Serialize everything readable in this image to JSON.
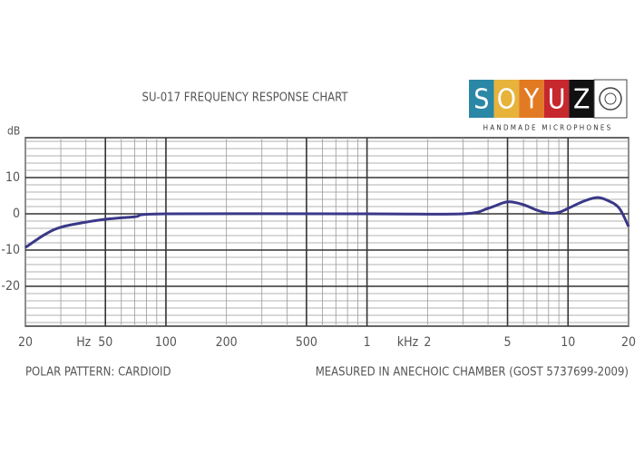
{
  "chart_data": {
    "type": "line",
    "title": "SU-017 FREQUENCY RESPONSE CHART",
    "ylabel": "dB",
    "x_scale": "log",
    "xlim": [
      20,
      20000
    ],
    "ylim": [
      -31,
      21
    ],
    "xticks": [
      20,
      50,
      100,
      200,
      500,
      {
        "value": 1000,
        "label": "1"
      },
      {
        "value": 2000,
        "label": "2"
      },
      {
        "value": 5000,
        "label": "5"
      },
      {
        "value": 10000,
        "label": "10"
      },
      {
        "value": 20000,
        "label": "20"
      }
    ],
    "yticks": [
      -20,
      -10,
      0,
      10
    ],
    "x_grid": [
      20,
      30,
      40,
      50,
      60,
      70,
      80,
      90,
      100,
      200,
      300,
      400,
      500,
      600,
      700,
      800,
      900,
      1000,
      2000,
      3000,
      4000,
      5000,
      6000,
      7000,
      8000,
      9000,
      10000,
      20000
    ],
    "x_major_grid": [
      50,
      100,
      500,
      1000,
      5000,
      10000
    ],
    "y_grid": [
      -30,
      -28,
      -26,
      -24,
      -22,
      -20,
      -18,
      -16,
      -14,
      -12,
      -10,
      -8,
      -6,
      -4,
      -2,
      0,
      2,
      4,
      6,
      8,
      10,
      12,
      14,
      16,
      18,
      20
    ],
    "grid": true,
    "x_unit_labels": [
      {
        "text": "Hz",
        "at": 33
      },
      {
        "text": "kHz",
        "at": 1300
      }
    ],
    "series": [
      {
        "color": "#3a3888",
        "x": [
          20,
          25,
          30,
          40,
          50,
          70,
          100,
          1000,
          3000,
          4000,
          5000,
          6000,
          7000,
          8000,
          9000,
          10000,
          12000,
          14000,
          16000,
          18000,
          20000
        ],
        "values": [
          -9.3,
          -5.7,
          -3.7,
          -2.3,
          -1.5,
          -0.8,
          0,
          0,
          0,
          1.5,
          3.3,
          2.5,
          1,
          0.2,
          0.4,
          1.5,
          3.5,
          4.5,
          3.5,
          1.5,
          -3.5
        ]
      }
    ],
    "footer_left": "POLAR PATTERN: CARDIOID",
    "footer_right": "MEASURED IN ANECHOIC CHAMBER (GOST 5737699-2009)"
  },
  "logo": {
    "letters": [
      {
        "text": "S",
        "color": "#2b87a6"
      },
      {
        "text": "O",
        "color": "#e7b33a"
      },
      {
        "text": "Y",
        "color": "#e27a23"
      },
      {
        "text": "U",
        "color": "#c6282e"
      },
      {
        "text": "Z",
        "color": "#111111"
      }
    ],
    "tagline": "HANDMADE MICROPHONES"
  }
}
